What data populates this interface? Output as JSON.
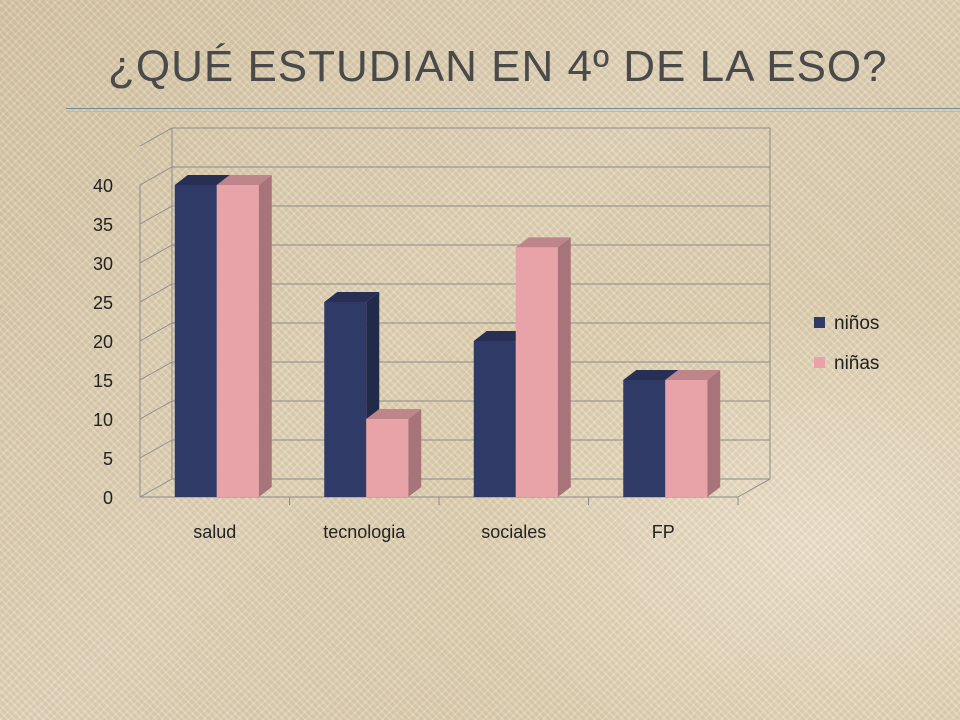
{
  "title": "¿QUÉ ESTUDIAN EN 4º DE LA ESO?",
  "chart_data": {
    "type": "bar",
    "categories": [
      "salud",
      "tecnologia",
      "sociales",
      "FP"
    ],
    "series": [
      {
        "name": "niños",
        "values": [
          40,
          25,
          20,
          15
        ],
        "color": "#2f3a66"
      },
      {
        "name": "niñas",
        "values": [
          40,
          10,
          32,
          15
        ],
        "color": "#e8a3a8"
      }
    ],
    "yticks": [
      "0",
      "5",
      "10",
      "15",
      "20",
      "25",
      "30",
      "35",
      "40"
    ],
    "ylim": [
      0,
      40
    ],
    "grid": true,
    "legend": "right",
    "style": "3d-column"
  }
}
